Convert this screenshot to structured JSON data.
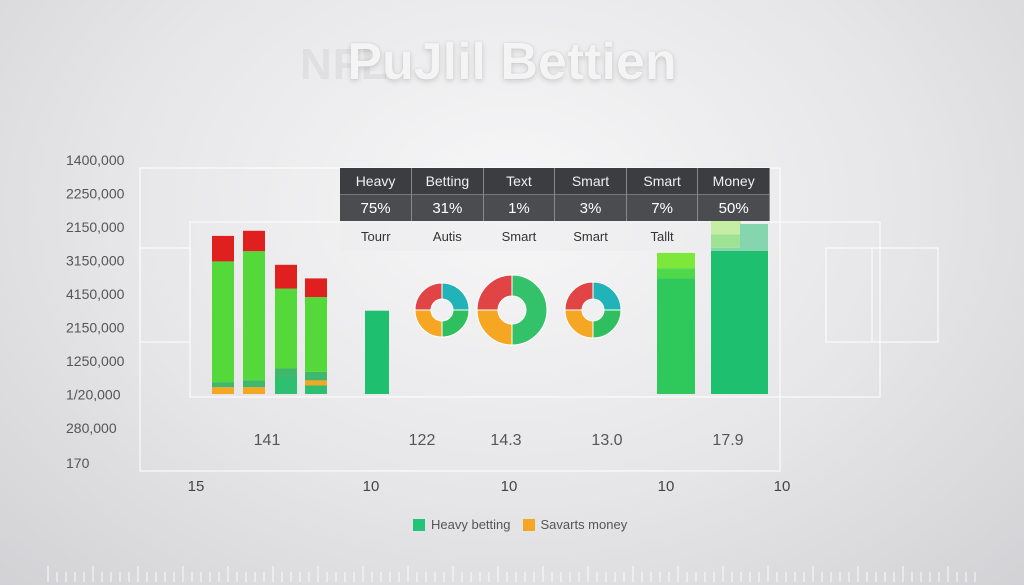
{
  "title": "PuJlil Bettien",
  "title_ghost": "NFL",
  "chart_data": {
    "type": "bar",
    "title": "PuJlil Bettien",
    "y_tick_labels": [
      "1400,000",
      "2250,000",
      "2150,000",
      "3150,000",
      "4150,000",
      "2150,000",
      "1250,000",
      "1/20,000",
      "280,000",
      "170"
    ],
    "x_tick_labels": [
      "15",
      "10",
      "10",
      "10",
      "10"
    ],
    "group_labels": [
      "141",
      "122",
      "14.3",
      "13.0",
      "17.9"
    ],
    "series": [
      {
        "name": "Heavy betting",
        "color": "#22c47a"
      },
      {
        "name": "Savarts money",
        "color": "#f5a623"
      }
    ],
    "bars": [
      {
        "segments": [
          {
            "value": 0.04,
            "color": "#f5a623"
          },
          {
            "value": 0.03,
            "color": "#3fb86c"
          },
          {
            "value": 0.71,
            "color": "#55d83a"
          },
          {
            "value": 0.15,
            "color": "#e01f1f"
          }
        ]
      },
      {
        "segments": [
          {
            "value": 0.04,
            "color": "#f5a623"
          },
          {
            "value": 0.04,
            "color": "#3fb86c"
          },
          {
            "value": 0.76,
            "color": "#55d83a"
          },
          {
            "value": 0.12,
            "color": "#e01f1f"
          }
        ]
      },
      {
        "segments": [
          {
            "value": 0.1,
            "color": "#2fbf70"
          },
          {
            "value": 0.05,
            "color": "#3fb86c"
          },
          {
            "value": 0.47,
            "color": "#55d83a"
          },
          {
            "value": 0.14,
            "color": "#e01f1f"
          }
        ]
      },
      {
        "segments": [
          {
            "value": 0.05,
            "color": "#2fbf70"
          },
          {
            "value": 0.03,
            "color": "#f5a623"
          },
          {
            "value": 0.05,
            "color": "#3fb86c"
          },
          {
            "value": 0.44,
            "color": "#55d83a"
          },
          {
            "value": 0.11,
            "color": "#e01f1f"
          }
        ]
      },
      {
        "segments": [
          {
            "value": 0.49,
            "color": "#1ec070"
          }
        ]
      },
      {
        "segments": [
          {
            "value": 0.68,
            "color": "#2ec95a"
          },
          {
            "value": 0.06,
            "color": "#4fd84a"
          },
          {
            "value": 0.09,
            "color": "#7ee83a"
          }
        ]
      },
      {
        "segments": [
          {
            "value": 0.86,
            "color": "#1ec070"
          },
          {
            "value": 0.08,
            "color": "#55d83a"
          },
          {
            "value": 0.08,
            "color": "#9ef05a"
          },
          {
            "value": 0.02,
            "color": "#f06030"
          }
        ]
      },
      {
        "segments": [
          {
            "value": 1.0,
            "color": "#1ec070"
          }
        ]
      }
    ],
    "donuts": [
      {
        "slices": [
          {
            "value": 25,
            "color": "#22b3b8"
          },
          {
            "value": 25,
            "color": "#2fbf5e"
          },
          {
            "value": 25,
            "color": "#f5a623"
          },
          {
            "value": 25,
            "color": "#e04444"
          }
        ]
      },
      {
        "slices": [
          {
            "value": 50,
            "color": "#33c26a"
          },
          {
            "value": 25,
            "color": "#f5a623"
          },
          {
            "value": 25,
            "color": "#e04444"
          }
        ]
      },
      {
        "slices": [
          {
            "value": 25,
            "color": "#22b3b8"
          },
          {
            "value": 25,
            "color": "#2fbf5e"
          },
          {
            "value": 25,
            "color": "#f5a623"
          },
          {
            "value": 25,
            "color": "#e04444"
          }
        ]
      }
    ],
    "legend_position": "bottom-center",
    "grid": false
  },
  "table": {
    "headers": [
      "Heavy",
      "Betting",
      "Text",
      "Smart",
      "Smart",
      "Money"
    ],
    "values": [
      "75%",
      "31%",
      "1%",
      "3%",
      "7%",
      "50%"
    ],
    "sublabels": [
      "Tourr",
      "Autis",
      "Smart",
      "Smart",
      "Tallt",
      ""
    ]
  },
  "legend": {
    "items": [
      {
        "label": "Heavy betting",
        "color": "#22c47a"
      },
      {
        "label": "Savarts money",
        "color": "#f5a623"
      }
    ]
  }
}
